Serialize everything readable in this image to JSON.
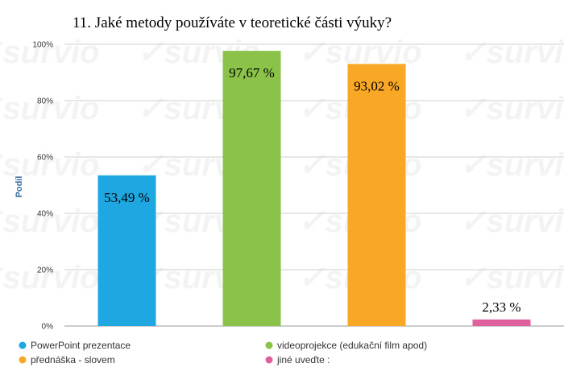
{
  "chart_data": {
    "type": "bar",
    "title": "11. Jaké metody používáte v teoretické části výuky?",
    "ylabel": "Podíl",
    "xlabel": "",
    "ylim": [
      0,
      100
    ],
    "y_ticks": [
      "0%",
      "20%",
      "40%",
      "60%",
      "80%",
      "100%"
    ],
    "grid": true,
    "legend_position": "bottom",
    "categories": [
      "PowerPoint prezentace",
      "videoprojekce (edukační film apod)",
      "přednáška - slovem",
      "jiné uveďte :"
    ],
    "values": [
      53.49,
      97.67,
      93.02,
      2.33
    ],
    "data_labels": [
      "53,49 %",
      "97,67 %",
      "93,02 %",
      "2,33 %"
    ],
    "colors": [
      "#1ea7e1",
      "#8bc34a",
      "#f9a825",
      "#e0609f"
    ]
  },
  "watermark": "survio"
}
